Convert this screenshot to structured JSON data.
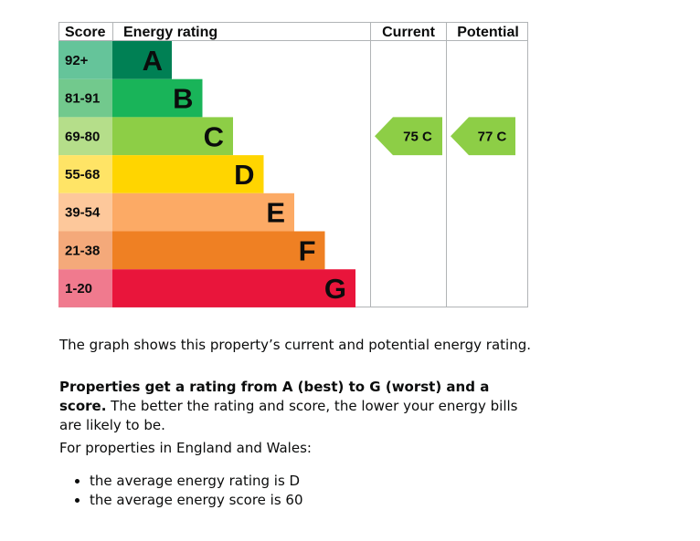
{
  "chart_data": {
    "type": "table",
    "headers": {
      "score": "Score",
      "energy_rating": "Energy rating",
      "current": "Current",
      "potential": "Potential"
    },
    "bands": [
      {
        "letter": "A",
        "range": "92+",
        "color": "#008054",
        "score_color": "#65c49a"
      },
      {
        "letter": "B",
        "range": "81-91",
        "color": "#19b459",
        "score_color": "#72c98d"
      },
      {
        "letter": "C",
        "range": "69-80",
        "color": "#8dce46",
        "score_color": "#b5de8a"
      },
      {
        "letter": "D",
        "range": "55-68",
        "color": "#ffd500",
        "score_color": "#ffe466"
      },
      {
        "letter": "E",
        "range": "39-54",
        "color": "#fcaa65",
        "score_color": "#fdc89b"
      },
      {
        "letter": "F",
        "range": "21-38",
        "color": "#ef8023",
        "score_color": "#f4a97a"
      },
      {
        "letter": "G",
        "range": "1-20",
        "color": "#e9153b",
        "score_color": "#f07a8e"
      }
    ],
    "current": {
      "score": 75,
      "band": "C",
      "label": "75 C",
      "color": "#8dce46"
    },
    "potential": {
      "score": 77,
      "band": "C",
      "label": "77 C",
      "color": "#8dce46"
    }
  },
  "description": {
    "p1": "The graph shows this property’s current and potential energy rating.",
    "p2_strong": "Properties get a rating from A (best) to G (worst) and a score.",
    "p2_rest": " The better the rating and score, the lower your energy bills are likely to be.",
    "p3": "For properties in England and Wales:",
    "bullets": [
      "the average energy rating is D",
      "the average energy score is 60"
    ]
  }
}
